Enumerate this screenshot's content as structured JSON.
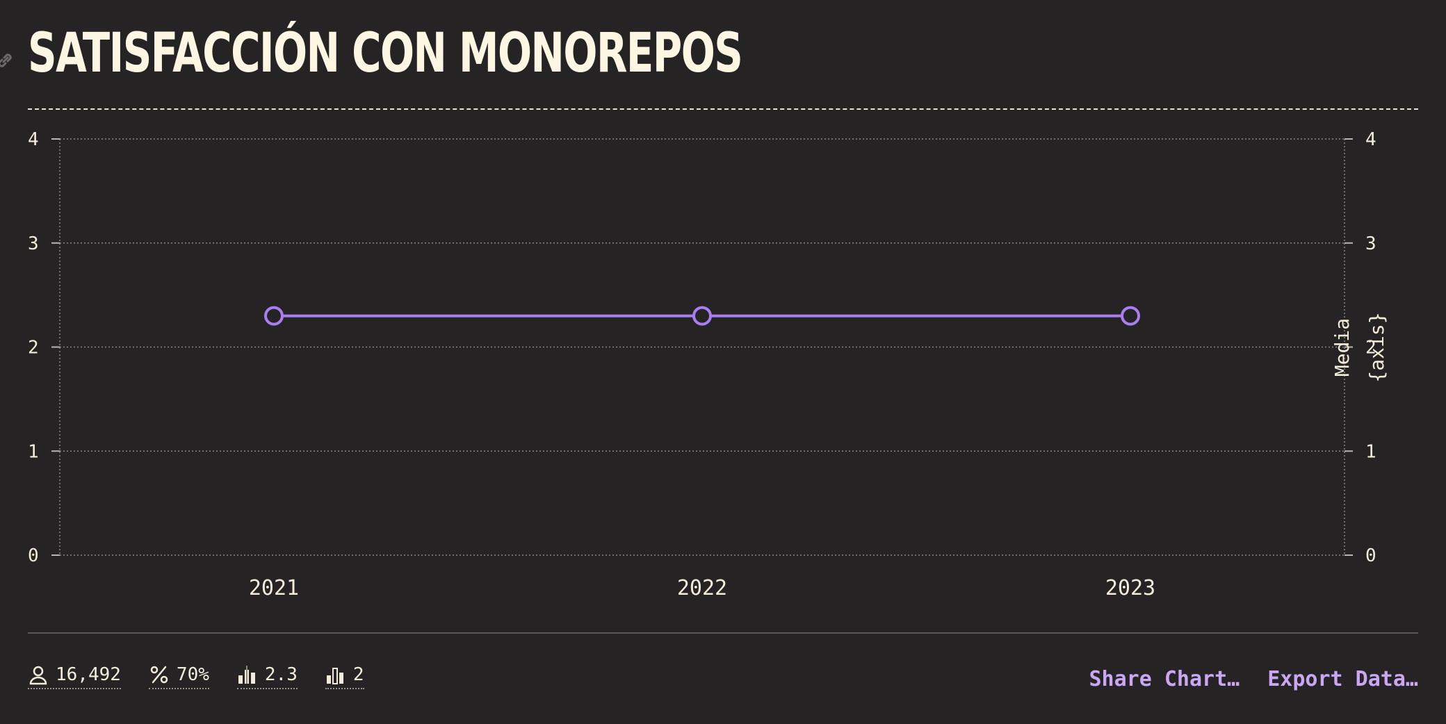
{
  "title": "SATISFACCIÓN CON MONOREPOS",
  "chart_data": {
    "type": "line",
    "x": [
      "2021",
      "2022",
      "2023"
    ],
    "series": [
      {
        "values": [
          2.3,
          2.3,
          2.3
        ],
        "color": "#a97ef0"
      }
    ],
    "ylim": [
      0,
      4
    ],
    "yticks": [
      "0",
      "1",
      "2",
      "3",
      "4"
    ],
    "y2label": "Media",
    "y2label_overlay": "{axis}",
    "grid": true
  },
  "stats": [
    {
      "icon": "person-icon",
      "value": "16,492"
    },
    {
      "icon": "percent-icon",
      "value": "70%"
    },
    {
      "icon": "bar-average-icon",
      "value": "2.3"
    },
    {
      "icon": "bar-count-icon",
      "value": "2"
    }
  ],
  "actions": {
    "share_label": "Share Chart…",
    "export_label": "Export Data…"
  },
  "colors": {
    "background": "#262324",
    "accent": "#a97ef0",
    "link": "#c9a7f2",
    "text": "#f3ecdb"
  }
}
